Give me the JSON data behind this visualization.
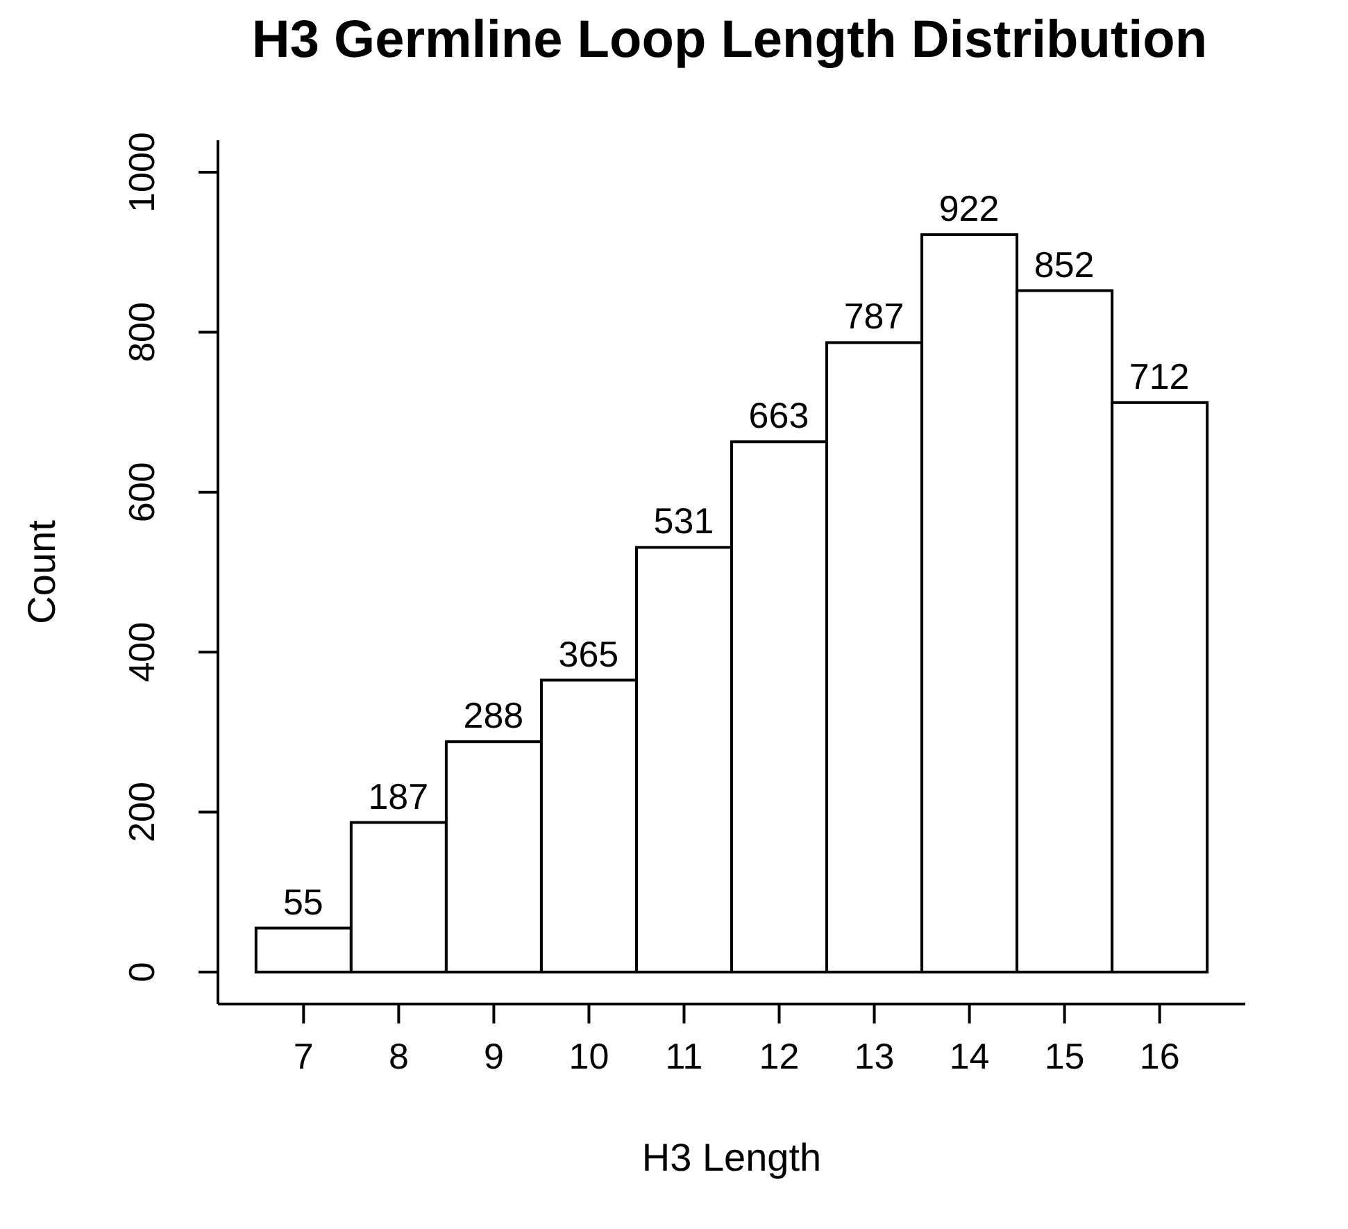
{
  "chart_data": {
    "type": "histogram",
    "title": "H3 Germline Loop Length Distribution",
    "xlabel": "H3 Length",
    "ylabel": "Count",
    "bins": [
      6.5,
      7.5,
      8.5,
      9.5,
      10.5,
      11.5,
      12.5,
      13.5,
      14.5,
      15.5,
      16.5
    ],
    "values": [
      55,
      187,
      288,
      365,
      531,
      663,
      787,
      922,
      852,
      712
    ],
    "color": "#ffffff",
    "xlim": [
      6.1,
      16.9
    ],
    "xticks": [
      7,
      8,
      9,
      10,
      11,
      12,
      13,
      14,
      15,
      16
    ],
    "ylim": [
      -40,
      1040
    ],
    "yticks": [
      0,
      200,
      400,
      600,
      800,
      1000
    ],
    "data_labels": true,
    "grid": false,
    "legend": false
  }
}
